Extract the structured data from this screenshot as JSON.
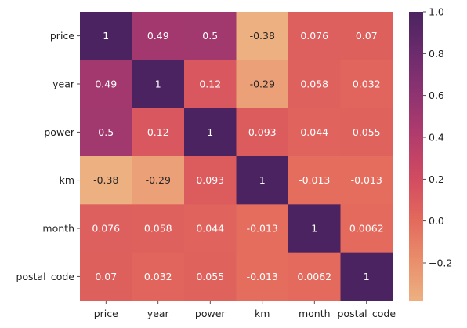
{
  "chart_data": {
    "type": "heatmap",
    "title": "",
    "xlabel": "",
    "ylabel": "",
    "x_categories": [
      "price",
      "year",
      "power",
      "km",
      "month",
      "postal_code"
    ],
    "y_categories": [
      "price",
      "year",
      "power",
      "km",
      "month",
      "postal_code"
    ],
    "values": [
      [
        1,
        0.49,
        0.5,
        -0.38,
        0.076,
        0.07
      ],
      [
        0.49,
        1,
        0.12,
        -0.29,
        0.058,
        0.032
      ],
      [
        0.5,
        0.12,
        1,
        0.093,
        0.044,
        0.055
      ],
      [
        -0.38,
        -0.29,
        0.093,
        1,
        -0.013,
        -0.013
      ],
      [
        0.076,
        0.058,
        0.044,
        -0.013,
        1,
        0.0062
      ],
      [
        0.07,
        0.032,
        0.055,
        -0.013,
        0.0062,
        1
      ]
    ],
    "labels": [
      [
        "1",
        "0.49",
        "0.5",
        "-0.38",
        "0.076",
        "0.07"
      ],
      [
        "0.49",
        "1",
        "0.12",
        "-0.29",
        "0.058",
        "0.032"
      ],
      [
        "0.5",
        "0.12",
        "1",
        "0.093",
        "0.044",
        "0.055"
      ],
      [
        "-0.38",
        "-0.29",
        "0.093",
        "1",
        "-0.013",
        "-0.013"
      ],
      [
        "0.076",
        "0.058",
        "0.044",
        "-0.013",
        "1",
        "0.0062"
      ],
      [
        "0.07",
        "0.032",
        "0.055",
        "-0.013",
        "0.0062",
        "1"
      ]
    ],
    "colorbar": {
      "range": [
        -0.38,
        1
      ],
      "ticks": [
        1.0,
        0.8,
        0.6,
        0.4,
        0.2,
        0.0,
        -0.2
      ],
      "tick_labels": [
        "1.0",
        "0.8",
        "0.6",
        "0.4",
        "0.2",
        "0.0",
        "−0.2"
      ]
    },
    "colormap": "flare",
    "colormap_stops": [
      "#edb081",
      "#e98d6b",
      "#e3685c",
      "#d14a61",
      "#b13c6c",
      "#8f3371",
      "#6c2b6d",
      "#4b2360"
    ],
    "grid": false
  }
}
